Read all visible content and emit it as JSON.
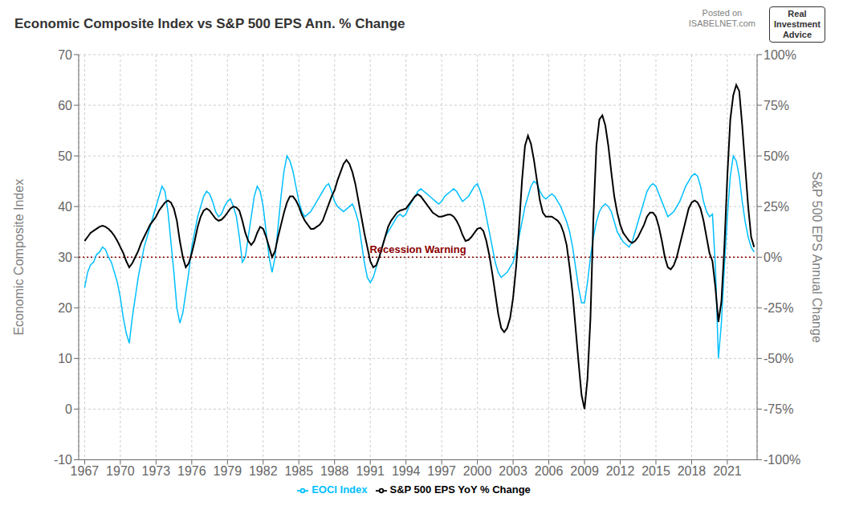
{
  "chart_data": {
    "type": "line",
    "title": "Economic Composite Index vs S&P 500 EPS Ann. % Change",
    "ylabel": "Economic Composite Index",
    "y2label": "S&P 500 EPS Annual Change",
    "x": [
      1967.0,
      1967.25,
      1967.5,
      1967.75,
      1968.0,
      1968.25,
      1968.5,
      1968.75,
      1969.0,
      1969.25,
      1969.5,
      1969.75,
      1970.0,
      1970.25,
      1970.5,
      1970.75,
      1971.0,
      1971.25,
      1971.5,
      1971.75,
      1972.0,
      1972.25,
      1972.5,
      1972.75,
      1973.0,
      1973.25,
      1973.5,
      1973.75,
      1974.0,
      1974.25,
      1974.5,
      1974.75,
      1975.0,
      1975.25,
      1975.5,
      1975.75,
      1976.0,
      1976.25,
      1976.5,
      1976.75,
      1977.0,
      1977.25,
      1977.5,
      1977.75,
      1978.0,
      1978.25,
      1978.5,
      1978.75,
      1979.0,
      1979.25,
      1979.5,
      1979.75,
      1980.0,
      1980.25,
      1980.5,
      1980.75,
      1981.0,
      1981.25,
      1981.5,
      1981.75,
      1982.0,
      1982.25,
      1982.5,
      1982.75,
      1983.0,
      1983.25,
      1983.5,
      1983.75,
      1984.0,
      1984.25,
      1984.5,
      1984.75,
      1985.0,
      1985.25,
      1985.5,
      1985.75,
      1986.0,
      1986.25,
      1986.5,
      1986.75,
      1987.0,
      1987.25,
      1987.5,
      1987.75,
      1988.0,
      1988.25,
      1988.5,
      1988.75,
      1989.0,
      1989.25,
      1989.5,
      1989.75,
      1990.0,
      1990.25,
      1990.5,
      1990.75,
      1991.0,
      1991.25,
      1991.5,
      1991.75,
      1992.0,
      1992.25,
      1992.5,
      1992.75,
      1993.0,
      1993.25,
      1993.5,
      1993.75,
      1994.0,
      1994.25,
      1994.5,
      1994.75,
      1995.0,
      1995.25,
      1995.5,
      1995.75,
      1996.0,
      1996.25,
      1996.5,
      1996.75,
      1997.0,
      1997.25,
      1997.5,
      1997.75,
      1998.0,
      1998.25,
      1998.5,
      1998.75,
      1999.0,
      1999.25,
      1999.5,
      1999.75,
      2000.0,
      2000.25,
      2000.5,
      2000.75,
      2001.0,
      2001.25,
      2001.5,
      2001.75,
      2002.0,
      2002.25,
      2002.5,
      2002.75,
      2003.0,
      2003.25,
      2003.5,
      2003.75,
      2004.0,
      2004.25,
      2004.5,
      2004.75,
      2005.0,
      2005.25,
      2005.5,
      2005.75,
      2006.0,
      2006.25,
      2006.5,
      2006.75,
      2007.0,
      2007.25,
      2007.5,
      2007.75,
      2008.0,
      2008.25,
      2008.5,
      2008.75,
      2009.0,
      2009.25,
      2009.5,
      2009.75,
      2010.0,
      2010.25,
      2010.5,
      2010.75,
      2011.0,
      2011.25,
      2011.5,
      2011.75,
      2012.0,
      2012.25,
      2012.5,
      2012.75,
      2013.0,
      2013.25,
      2013.5,
      2013.75,
      2014.0,
      2014.25,
      2014.5,
      2014.75,
      2015.0,
      2015.25,
      2015.5,
      2015.75,
      2016.0,
      2016.25,
      2016.5,
      2016.75,
      2017.0,
      2017.25,
      2017.5,
      2017.75,
      2018.0,
      2018.25,
      2018.5,
      2018.75,
      2019.0,
      2019.25,
      2019.5,
      2019.75,
      2020.0,
      2020.25,
      2020.5,
      2020.75,
      2021.0,
      2021.25,
      2021.5,
      2021.75,
      2022.0,
      2022.25,
      2022.5,
      2022.75,
      2023.0,
      2023.25
    ],
    "series": [
      {
        "name": "EOCI Index",
        "color": "#00BFFF",
        "values": [
          24.0,
          27.0,
          28.5,
          29.0,
          30.5,
          31.0,
          32.0,
          31.5,
          30.0,
          29.0,
          27.0,
          25.0,
          22.0,
          18.0,
          15.0,
          13.0,
          18.0,
          22.0,
          26.0,
          29.0,
          32.0,
          34.0,
          36.0,
          38.0,
          40.0,
          42.0,
          44.0,
          43.0,
          39.0,
          33.0,
          27.0,
          20.0,
          17.0,
          19.0,
          23.0,
          27.0,
          32.0,
          35.0,
          38.0,
          40.0,
          42.0,
          43.0,
          42.5,
          41.0,
          39.0,
          38.0,
          38.5,
          40.0,
          41.0,
          41.5,
          40.0,
          38.0,
          34.0,
          29.0,
          30.0,
          34.0,
          38.0,
          42.0,
          44.0,
          43.0,
          40.0,
          35.0,
          30.0,
          27.0,
          30.0,
          36.0,
          42.0,
          47.0,
          50.0,
          49.0,
          47.0,
          44.0,
          41.0,
          39.0,
          38.0,
          38.5,
          39.0,
          40.0,
          41.0,
          42.0,
          43.0,
          44.0,
          44.5,
          43.0,
          41.0,
          40.0,
          39.5,
          39.0,
          39.5,
          40.0,
          40.5,
          39.0,
          37.0,
          33.0,
          29.0,
          26.0,
          25.0,
          26.0,
          28.0,
          30.0,
          32.0,
          34.0,
          35.0,
          36.0,
          37.0,
          38.0,
          38.5,
          38.0,
          38.5,
          40.0,
          41.0,
          42.0,
          43.0,
          43.5,
          43.0,
          42.5,
          42.0,
          41.5,
          41.0,
          40.5,
          41.0,
          42.0,
          42.5,
          43.0,
          43.5,
          43.0,
          42.0,
          41.0,
          41.5,
          42.0,
          43.0,
          44.0,
          44.5,
          43.0,
          41.0,
          38.0,
          35.0,
          32.0,
          29.0,
          27.0,
          26.0,
          26.5,
          27.0,
          28.0,
          29.0,
          31.0,
          34.0,
          37.0,
          40.0,
          42.0,
          44.0,
          45.0,
          44.5,
          43.0,
          42.0,
          41.5,
          42.0,
          42.5,
          42.0,
          41.0,
          40.0,
          38.5,
          37.0,
          35.0,
          32.0,
          28.0,
          24.0,
          21.0,
          21.0,
          25.0,
          30.0,
          34.0,
          37.0,
          39.0,
          40.0,
          40.5,
          40.0,
          39.0,
          37.0,
          35.0,
          34.0,
          33.0,
          32.5,
          32.0,
          33.0,
          35.0,
          37.0,
          39.0,
          41.0,
          43.0,
          44.0,
          44.5,
          44.0,
          42.5,
          41.0,
          39.5,
          38.0,
          38.5,
          39.0,
          40.0,
          41.0,
          42.5,
          44.0,
          45.0,
          46.0,
          46.5,
          46.0,
          44.0,
          41.0,
          39.0,
          38.0,
          38.5,
          28.0,
          10.0,
          17.0,
          28.0,
          38.0,
          46.0,
          50.0,
          49.0,
          46.0,
          41.0,
          37.0,
          34.0,
          32.0,
          31.0
        ]
      },
      {
        "name": "S&P 500 EPS YoY % Change",
        "color": "#000000",
        "axis": "y2",
        "values": [
          8.0,
          10.0,
          12.0,
          13.0,
          14.0,
          15.0,
          15.5,
          15.0,
          14.0,
          12.5,
          10.5,
          8.0,
          5.0,
          2.0,
          -2.0,
          -5.0,
          -3.0,
          0.0,
          3.0,
          7.0,
          10.0,
          13.0,
          16.0,
          18.0,
          20.0,
          23.0,
          25.0,
          27.0,
          28.0,
          27.0,
          24.0,
          18.0,
          8.0,
          0.0,
          -5.0,
          -3.0,
          2.0,
          8.0,
          15.0,
          20.0,
          23.0,
          24.0,
          23.0,
          21.0,
          19.0,
          18.0,
          18.5,
          20.0,
          22.0,
          24.0,
          25.0,
          24.5,
          23.0,
          18.0,
          12.0,
          8.0,
          6.0,
          8.0,
          12.0,
          15.0,
          14.0,
          10.0,
          5.0,
          0.0,
          3.0,
          10.0,
          16.0,
          22.0,
          27.0,
          30.0,
          30.0,
          28.0,
          25.0,
          21.0,
          18.0,
          16.0,
          14.0,
          14.0,
          15.0,
          16.0,
          18.0,
          22.0,
          26.0,
          30.0,
          33.0,
          38.0,
          42.0,
          46.0,
          48.0,
          46.0,
          42.0,
          36.0,
          28.0,
          20.0,
          12.0,
          5.0,
          -2.0,
          -5.0,
          -4.0,
          0.0,
          5.0,
          10.0,
          15.0,
          18.0,
          20.0,
          22.0,
          23.0,
          23.5,
          24.0,
          26.0,
          28.0,
          30.0,
          31.0,
          30.0,
          28.0,
          26.0,
          24.0,
          22.0,
          21.0,
          20.0,
          20.0,
          20.5,
          21.0,
          21.0,
          20.0,
          18.0,
          15.0,
          11.0,
          8.0,
          8.5,
          10.0,
          12.0,
          14.0,
          14.5,
          13.0,
          8.0,
          1.0,
          -8.0,
          -18.0,
          -28.0,
          -35.0,
          -37.0,
          -35.0,
          -30.0,
          -20.0,
          -5.0,
          15.0,
          38.0,
          55.0,
          60.0,
          56.0,
          48.0,
          38.0,
          28.0,
          22.0,
          20.0,
          20.0,
          20.0,
          19.0,
          18.0,
          16.0,
          12.0,
          6.0,
          -5.0,
          -18.0,
          -35.0,
          -52.0,
          -68.0,
          -75.0,
          -60.0,
          -30.0,
          20.0,
          55.0,
          68.0,
          70.0,
          65.0,
          55.0,
          42.0,
          30.0,
          22.0,
          16.0,
          12.0,
          10.0,
          8.0,
          7.0,
          8.0,
          10.0,
          13.0,
          16.0,
          20.0,
          22.0,
          22.0,
          20.0,
          15.0,
          8.0,
          0.0,
          -5.0,
          -6.0,
          -4.0,
          0.0,
          6.0,
          12.0,
          18.0,
          24.0,
          27.0,
          28.0,
          27.0,
          24.0,
          18.0,
          10.0,
          2.0,
          -2.0,
          -15.0,
          -32.0,
          -22.0,
          5.0,
          40.0,
          68.0,
          80.0,
          85.0,
          82.0,
          65.0,
          45.0,
          25.0,
          10.0,
          5.0
        ]
      }
    ],
    "xlim": [
      1966.5,
      2023.5
    ],
    "xticks": [
      1967,
      1970,
      1973,
      1976,
      1979,
      1982,
      1985,
      1988,
      1991,
      1994,
      1997,
      2000,
      2003,
      2006,
      2009,
      2012,
      2015,
      2018,
      2021
    ],
    "ylim": [
      -10,
      70
    ],
    "yticks": [
      -10,
      0,
      10,
      20,
      30,
      40,
      50,
      60,
      70
    ],
    "y2lim": [
      -100,
      100
    ],
    "y2ticks": [
      {
        "value": -100,
        "label": "-100%"
      },
      {
        "value": -75,
        "label": "-75%"
      },
      {
        "value": -50,
        "label": "-50%"
      },
      {
        "value": -25,
        "label": "-25%"
      },
      {
        "value": 0,
        "label": "0%"
      },
      {
        "value": 25,
        "label": "25%"
      },
      {
        "value": 50,
        "label": "50%"
      },
      {
        "value": 75,
        "label": "75%"
      },
      {
        "value": 100,
        "label": "100%"
      }
    ],
    "annotations": [
      {
        "text": "Recession Warning",
        "y": 30,
        "color": "#8B0000",
        "line_style": "dotted"
      },
      {
        "text": "Posted on\nISABELNET.com"
      },
      {
        "text": "Real\nInvestment\nAdvice"
      }
    ],
    "grid": true,
    "legend": "bottom"
  }
}
